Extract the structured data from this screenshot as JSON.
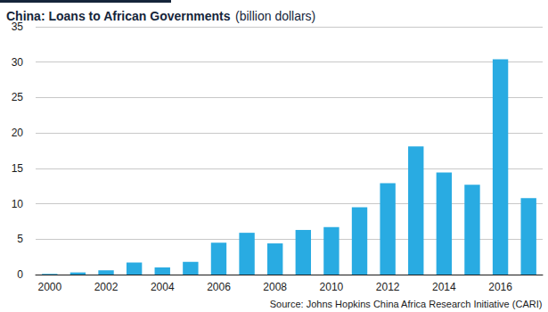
{
  "chart_data": {
    "type": "bar",
    "title": "China: Loans to African Governments",
    "subtitle": "(billion dollars)",
    "source": "Source: Johns Hopkins China Africa Research Initiative (CARI)",
    "categories": [
      "2000",
      null,
      "2002",
      null,
      "2004",
      null,
      "2006",
      null,
      "2008",
      null,
      "2010",
      null,
      "2012",
      null,
      "2014",
      null,
      "2016",
      null
    ],
    "values": [
      0.1,
      0.3,
      0.6,
      1.7,
      1.0,
      1.8,
      4.5,
      5.9,
      4.4,
      6.3,
      6.7,
      9.5,
      12.9,
      18.1,
      14.4,
      12.7,
      30.4,
      10.8
    ],
    "color": "#29abe2",
    "ylim": [
      0,
      35
    ],
    "yticks": [
      0,
      5,
      10,
      15,
      20,
      25,
      30,
      35
    ],
    "grid": true
  }
}
